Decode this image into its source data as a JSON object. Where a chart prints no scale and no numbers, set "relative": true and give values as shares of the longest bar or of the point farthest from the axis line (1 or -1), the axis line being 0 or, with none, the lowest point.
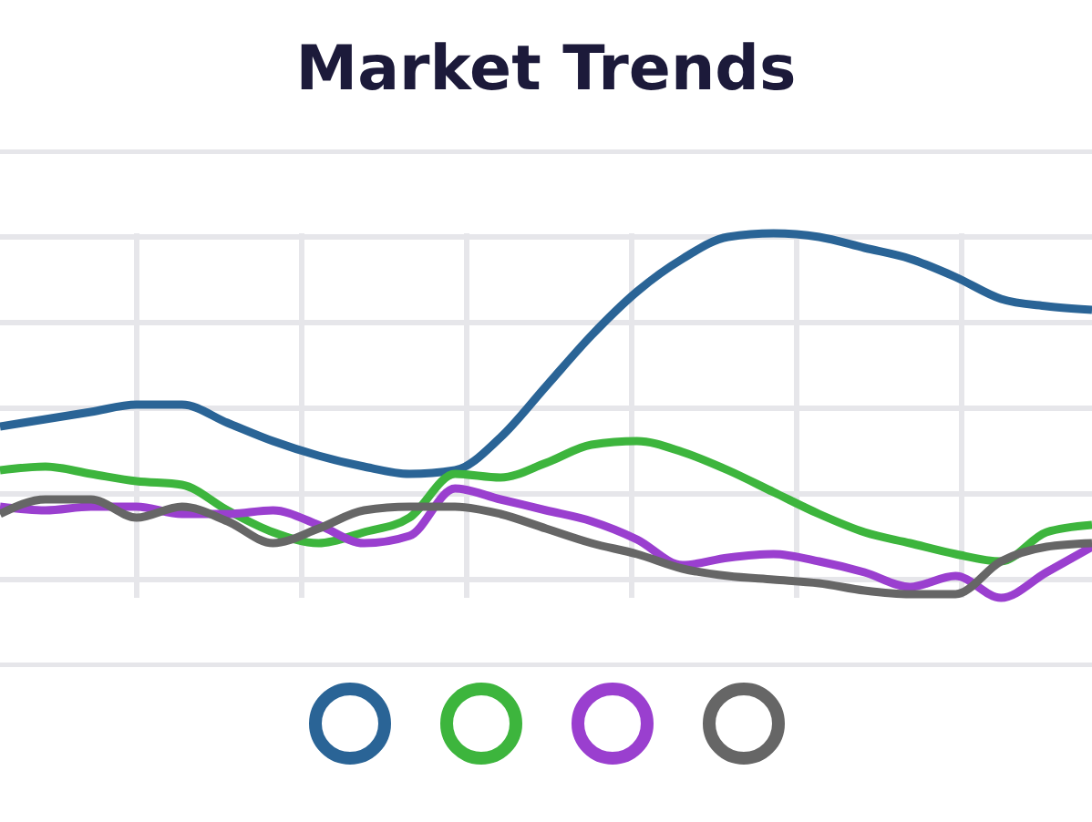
{
  "chart_data": {
    "type": "line",
    "title": "Market Trends",
    "relative": true,
    "grid": true,
    "categories": [
      null,
      null,
      null,
      null,
      null,
      null,
      null,
      null,
      null,
      null,
      null,
      null,
      null,
      null,
      null,
      null,
      null,
      null,
      null,
      null,
      null,
      null,
      null,
      null,
      null
    ],
    "series": [
      {
        "color": "#2a6496",
        "values": [
          0.47,
          0.49,
          0.51,
          0.53,
          0.53,
          0.48,
          0.43,
          0.39,
          0.36,
          0.34,
          0.35,
          0.44,
          0.58,
          0.72,
          0.84,
          0.93,
          0.99,
          1,
          0.99,
          0.96,
          0.93,
          0.88,
          0.82,
          0.8,
          0.79
        ]
      },
      {
        "color": "#3db53d",
        "values": [
          0.35,
          0.36,
          0.34,
          0.32,
          0.31,
          0.24,
          0.18,
          0.15,
          0.18,
          0.22,
          0.34,
          0.33,
          0.37,
          0.42,
          0.43,
          0.4,
          0.35,
          0.29,
          0.23,
          0.18,
          0.15,
          0.12,
          0.1,
          0.18,
          0.2
        ]
      },
      {
        "color": "#9a3fcf",
        "values": [
          0.25,
          0.24,
          0.25,
          0.25,
          0.23,
          0.23,
          0.24,
          0.2,
          0.15,
          0.17,
          0.3,
          0.27,
          0.24,
          0.21,
          0.16,
          0.09,
          0.11,
          0.12,
          0.1,
          0.07,
          0.03,
          0.06,
          0,
          0.07,
          0.14
        ]
      },
      {
        "color": "#666666",
        "values": [
          0.23,
          0.27,
          0.27,
          0.22,
          0.25,
          0.21,
          0.15,
          0.19,
          0.24,
          0.25,
          0.25,
          0.23,
          0.19,
          0.15,
          0.12,
          0.08,
          0.06,
          0.05,
          0.04,
          0.02,
          0.01,
          0.01,
          0.1,
          0.14,
          0.15
        ]
      }
    ]
  }
}
